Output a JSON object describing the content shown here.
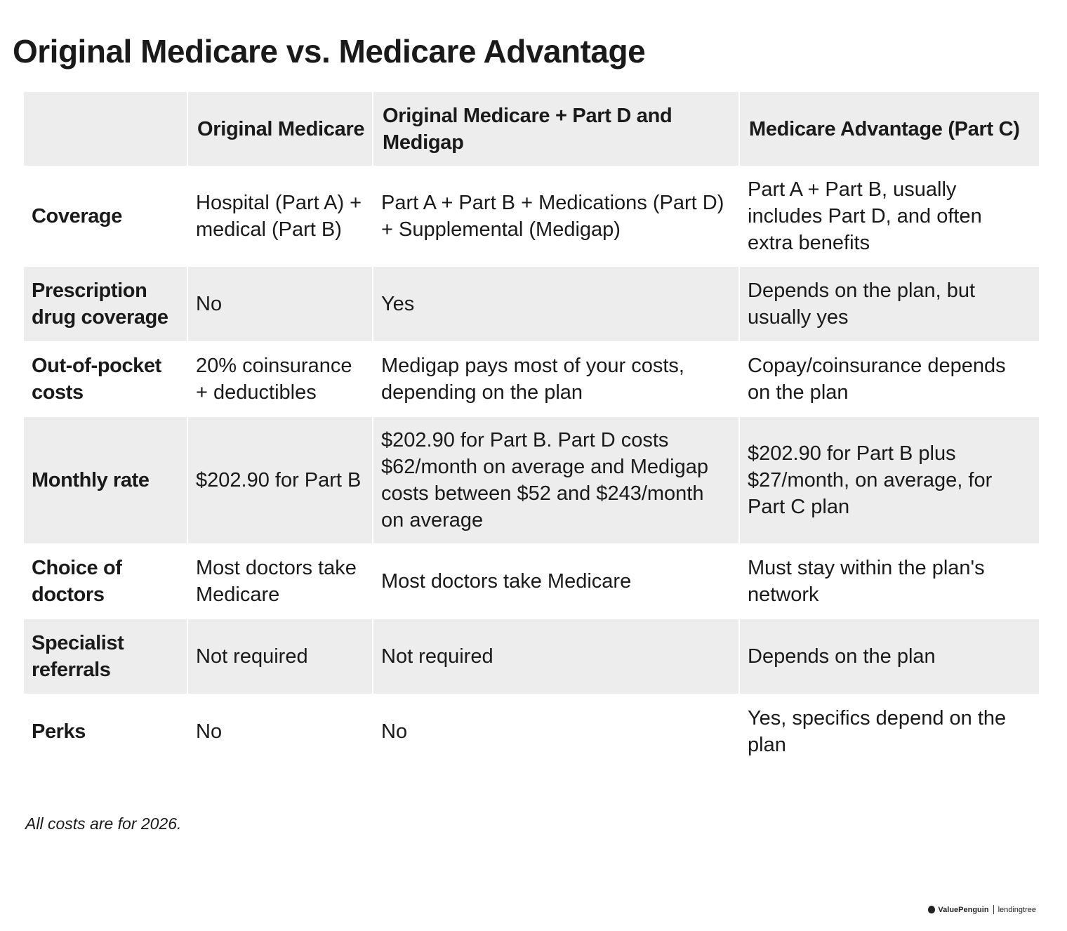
{
  "title": "Original Medicare vs. Medicare Advantage",
  "table": {
    "columns": [
      "",
      "Original Medicare",
      "Original Medicare + Part D and Medigap",
      "Medicare Advantage (Part C)"
    ],
    "rows": [
      {
        "label": "Coverage",
        "cells": [
          "Hospital (Part A) + medical (Part B)",
          "Part A + Part B + Medications (Part D) + Supplemental (Medigap)",
          "Part A + Part B, usually includes Part D, and often extra benefits"
        ]
      },
      {
        "label": "Prescription drug coverage",
        "cells": [
          "No",
          "Yes",
          "Depends on the plan, but usually yes"
        ]
      },
      {
        "label": "Out-of-pocket costs",
        "cells": [
          "20% coinsurance + deductibles",
          "Medigap pays most of your costs, depending on the plan",
          "Copay/coinsurance depends on the plan"
        ]
      },
      {
        "label": "Monthly rate",
        "cells": [
          "$202.90 for Part B",
          "$202.90 for Part B. Part D costs $62/month on average and Medigap costs between $52 and $243/month on average",
          "$202.90 for Part B plus $27/month, on average, for Part C plan"
        ]
      },
      {
        "label": "Choice of doctors",
        "cells": [
          "Most doctors take Medicare",
          "Most doctors take Medicare",
          "Must stay within the plan's network"
        ]
      },
      {
        "label": "Specialist referrals",
        "cells": [
          "Not required",
          "Not required",
          "Depends on the plan"
        ]
      },
      {
        "label": "Perks",
        "cells": [
          "No",
          "No",
          "Yes, specifics depend on the plan"
        ]
      }
    ]
  },
  "footnote": "All costs are for 2026.",
  "brand": {
    "logo_text": "ValuePenguin",
    "partner_text": "lendingtree",
    "logo_icon": "penguin-icon"
  }
}
